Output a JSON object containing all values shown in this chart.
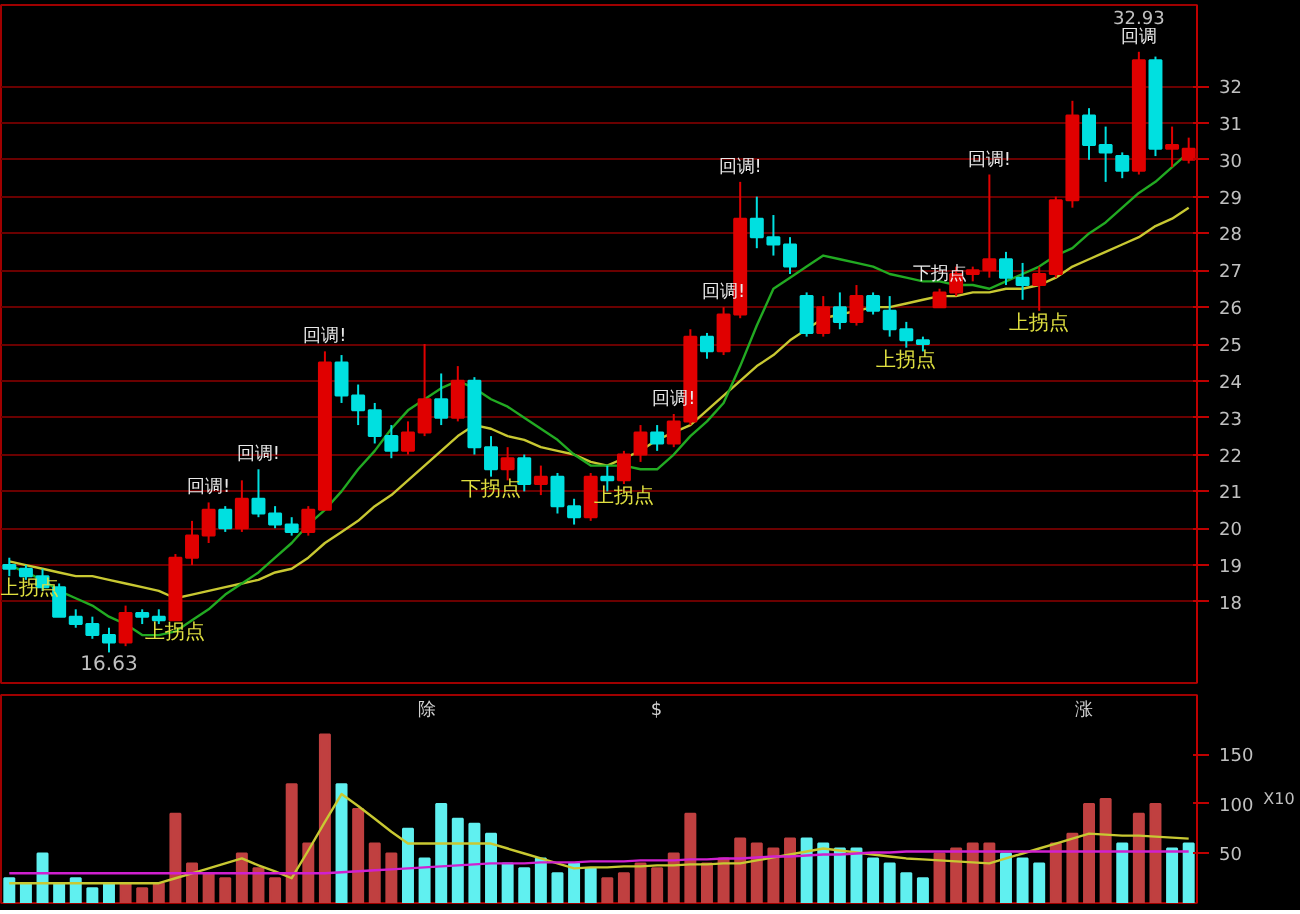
{
  "chart_data": [
    {
      "type": "candlestick",
      "categories": [
        null,
        null,
        null,
        null,
        null,
        null,
        null,
        null,
        null,
        null,
        null,
        null,
        null,
        null,
        null,
        null,
        null,
        null,
        null,
        null,
        null,
        null,
        null,
        null,
        null,
        null,
        null,
        null,
        null,
        null,
        null,
        null,
        null,
        null,
        null,
        null,
        null,
        null,
        null,
        null,
        null,
        null,
        null,
        null,
        null,
        null,
        null,
        null,
        null,
        null,
        null,
        null,
        null,
        null,
        null,
        null,
        null,
        null,
        null,
        null,
        null,
        null,
        null,
        null,
        null,
        null,
        null,
        null,
        null,
        null,
        null,
        null
      ],
      "ohlc": [
        [
          19.0,
          19.2,
          18.7,
          18.9
        ],
        [
          18.9,
          19.0,
          18.6,
          18.7
        ],
        [
          18.7,
          18.9,
          18.3,
          18.4
        ],
        [
          18.4,
          18.5,
          17.6,
          17.6
        ],
        [
          17.6,
          17.8,
          17.3,
          17.4
        ],
        [
          17.4,
          17.6,
          17.0,
          17.1
        ],
        [
          17.1,
          17.3,
          16.63,
          16.9
        ],
        [
          16.9,
          17.9,
          16.8,
          17.7
        ],
        [
          17.7,
          17.8,
          17.4,
          17.6
        ],
        [
          17.6,
          17.8,
          17.4,
          17.5
        ],
        [
          17.5,
          19.3,
          17.5,
          19.2
        ],
        [
          19.2,
          20.2,
          19.0,
          19.8
        ],
        [
          19.8,
          20.7,
          19.6,
          20.5
        ],
        [
          20.5,
          20.6,
          19.9,
          20.0
        ],
        [
          20.0,
          21.3,
          19.9,
          20.8
        ],
        [
          20.8,
          21.6,
          20.3,
          20.4
        ],
        [
          20.4,
          20.6,
          20.0,
          20.1
        ],
        [
          20.1,
          20.3,
          19.8,
          19.9
        ],
        [
          19.9,
          20.6,
          19.8,
          20.5
        ],
        [
          20.5,
          24.8,
          20.5,
          24.5
        ],
        [
          24.5,
          24.7,
          23.4,
          23.6
        ],
        [
          23.6,
          23.9,
          22.8,
          23.2
        ],
        [
          23.2,
          23.4,
          22.3,
          22.5
        ],
        [
          22.5,
          22.8,
          21.9,
          22.1
        ],
        [
          22.1,
          22.9,
          22.0,
          22.6
        ],
        [
          22.6,
          25.0,
          22.5,
          23.5
        ],
        [
          23.5,
          24.2,
          22.8,
          23.0
        ],
        [
          23.0,
          24.4,
          22.9,
          24.0
        ],
        [
          24.0,
          24.1,
          22.0,
          22.2
        ],
        [
          22.2,
          22.5,
          21.4,
          21.6
        ],
        [
          21.6,
          22.2,
          21.3,
          21.9
        ],
        [
          21.9,
          22.0,
          21.0,
          21.2
        ],
        [
          21.2,
          21.7,
          20.9,
          21.4
        ],
        [
          21.4,
          21.5,
          20.4,
          20.6
        ],
        [
          20.6,
          20.8,
          20.1,
          20.3
        ],
        [
          20.3,
          21.5,
          20.2,
          21.4
        ],
        [
          21.4,
          21.7,
          21.0,
          21.3
        ],
        [
          21.3,
          22.1,
          21.2,
          22.0
        ],
        [
          22.0,
          22.8,
          21.8,
          22.6
        ],
        [
          22.6,
          22.8,
          22.1,
          22.3
        ],
        [
          22.3,
          23.1,
          22.2,
          22.9
        ],
        [
          22.9,
          25.4,
          22.8,
          25.2
        ],
        [
          25.2,
          25.3,
          24.6,
          24.8
        ],
        [
          24.8,
          26.0,
          24.7,
          25.8
        ],
        [
          25.8,
          29.4,
          25.7,
          28.4
        ],
        [
          28.4,
          29.0,
          27.6,
          27.9
        ],
        [
          27.9,
          28.5,
          27.4,
          27.7
        ],
        [
          27.7,
          27.9,
          26.9,
          27.1
        ],
        [
          26.3,
          26.4,
          25.2,
          25.3
        ],
        [
          25.3,
          26.3,
          25.2,
          26.0
        ],
        [
          26.0,
          26.4,
          25.4,
          25.6
        ],
        [
          25.6,
          26.6,
          25.5,
          26.3
        ],
        [
          26.3,
          26.4,
          25.8,
          25.9
        ],
        [
          25.9,
          26.3,
          25.2,
          25.4
        ],
        [
          25.4,
          25.6,
          24.9,
          25.1
        ],
        [
          25.1,
          25.2,
          24.8,
          25.0
        ],
        [
          26.0,
          26.5,
          26.0,
          26.4
        ],
        [
          26.4,
          27.1,
          26.3,
          26.9
        ],
        [
          26.9,
          27.1,
          26.7,
          27.0
        ],
        [
          27.0,
          29.6,
          26.8,
          27.3
        ],
        [
          27.3,
          27.5,
          26.6,
          26.8
        ],
        [
          26.8,
          27.2,
          26.2,
          26.6
        ],
        [
          26.6,
          27.1,
          25.9,
          26.9
        ],
        [
          26.9,
          29.0,
          26.8,
          28.9
        ],
        [
          28.9,
          31.6,
          28.7,
          31.2
        ],
        [
          31.2,
          31.4,
          30.0,
          30.4
        ],
        [
          30.4,
          30.9,
          29.4,
          30.2
        ],
        [
          30.1,
          30.2,
          29.5,
          29.7
        ],
        [
          29.7,
          32.93,
          29.6,
          32.7
        ],
        [
          32.7,
          32.8,
          30.1,
          30.3
        ],
        [
          30.3,
          30.9,
          29.8,
          30.4
        ],
        [
          30.0,
          30.6,
          29.9,
          30.3
        ]
      ],
      "series": [
        {
          "type": "line",
          "color": "#c8c832",
          "values": [
            19.1,
            19.0,
            18.9,
            18.8,
            18.7,
            18.7,
            18.6,
            18.5,
            18.4,
            18.3,
            18.1,
            18.2,
            18.3,
            18.4,
            18.5,
            18.6,
            18.8,
            18.9,
            19.2,
            19.6,
            19.9,
            20.2,
            20.6,
            20.9,
            21.3,
            21.7,
            22.1,
            22.5,
            22.8,
            22.7,
            22.5,
            22.4,
            22.2,
            22.1,
            22.0,
            21.8,
            21.7,
            21.9,
            22.1,
            22.4,
            22.6,
            22.8,
            23.2,
            23.6,
            24.0,
            24.4,
            24.7,
            25.1,
            25.4,
            25.7,
            25.8,
            25.9,
            26.0,
            26.0,
            26.1,
            26.2,
            26.3,
            26.3,
            26.4,
            26.4,
            26.5,
            26.5,
            26.6,
            26.8,
            27.1,
            27.3,
            27.5,
            27.7,
            27.9,
            28.2,
            28.4,
            28.7
          ]
        },
        {
          "type": "line",
          "color": "#22aa22",
          "values": [
            19.0,
            18.8,
            18.6,
            18.3,
            18.1,
            17.9,
            17.6,
            17.4,
            17.1,
            17.1,
            17.2,
            17.5,
            17.8,
            18.2,
            18.5,
            18.8,
            19.2,
            19.6,
            20.1,
            20.5,
            21.0,
            21.6,
            22.1,
            22.7,
            23.2,
            23.5,
            23.8,
            24.0,
            23.8,
            23.5,
            23.3,
            23.0,
            22.7,
            22.4,
            22.0,
            21.7,
            21.7,
            21.7,
            21.6,
            21.6,
            22.0,
            22.5,
            22.9,
            23.4,
            24.4,
            25.5,
            26.5,
            26.8,
            27.1,
            27.4,
            27.3,
            27.2,
            27.1,
            26.9,
            26.8,
            26.7,
            26.7,
            26.6,
            26.6,
            26.5,
            26.7,
            26.9,
            27.1,
            27.4,
            27.6,
            28.0,
            28.3,
            28.7,
            29.1,
            29.4,
            29.8,
            30.2
          ]
        }
      ],
      "annotations": [
        {
          "text": "回调!",
          "y": 20.7
        },
        {
          "text": "回调!",
          "y": 21.6
        },
        {
          "text": "回调!",
          "y": 24.8
        },
        {
          "text": "回调!",
          "y": 23.1
        },
        {
          "text": "回调!",
          "y": 26.0
        },
        {
          "text": "回调!",
          "y": 29.4
        },
        {
          "text": "回调!",
          "y": 29.6
        },
        {
          "text": "回调",
          "y": 32.93
        },
        {
          "text": "上拐点",
          "y": 18.7
        },
        {
          "text": "上拐点",
          "y": 17.5
        },
        {
          "text": "上拐点",
          "y": 21.2
        },
        {
          "text": "上拐点",
          "y": 24.9
        },
        {
          "text": "上拐点",
          "y": 25.9
        },
        {
          "text": "下拐点",
          "y": 21.4
        },
        {
          "text": "下拐点",
          "y": 26.5
        },
        {
          "text": "16.63",
          "y": 16.63
        },
        {
          "text": "32.93",
          "y": 32.93
        }
      ],
      "ylim": [
        15.8,
        34.2
      ],
      "yticks": [
        18,
        19,
        20,
        21,
        22,
        23,
        24,
        25,
        26,
        27,
        28,
        29,
        30,
        31,
        32
      ],
      "grid": "y",
      "tick_labels": "y"
    },
    {
      "type": "bar",
      "categories": [
        null,
        null,
        null,
        null,
        null,
        null,
        null,
        null,
        null,
        null,
        null,
        null,
        null,
        null,
        null,
        null,
        null,
        null,
        null,
        null,
        null,
        null,
        null,
        null,
        null,
        null,
        null,
        null,
        null,
        null,
        null,
        null,
        null,
        null,
        null,
        null,
        null,
        null,
        null,
        null,
        null,
        null,
        null,
        null,
        null,
        null,
        null,
        null,
        null,
        null,
        null,
        null,
        null,
        null,
        null,
        null,
        null,
        null,
        null,
        null,
        null,
        null,
        null,
        null,
        null,
        null,
        null,
        null,
        null,
        null,
        null,
        null
      ],
      "series": [
        {
          "type": "bar",
          "values": [
            25,
            20,
            50,
            20,
            25,
            15,
            20,
            20,
            15,
            20,
            90,
            40,
            30,
            25,
            50,
            35,
            25,
            120,
            60,
            170,
            120,
            95,
            60,
            50,
            75,
            45,
            100,
            85,
            80,
            70,
            40,
            35,
            45,
            30,
            40,
            35,
            25,
            30,
            40,
            35,
            50,
            90,
            40,
            45,
            65,
            60,
            55,
            65,
            65,
            60,
            55,
            55,
            45,
            40,
            30,
            25,
            50,
            55,
            60,
            60,
            50,
            45,
            40,
            60,
            70,
            100,
            105,
            60,
            90,
            100,
            55,
            60
          ],
          "colors": [
            "#60f0f0",
            "#60f0f0",
            "#60f0f0",
            "#60f0f0",
            "#60f0f0",
            "#60f0f0",
            "#60f0f0",
            "#c04040",
            "#c04040",
            "#c04040",
            "#c04040",
            "#c04040",
            "#c04040",
            "#c04040",
            "#c04040",
            "#c04040",
            "#c04040",
            "#c04040",
            "#c04040",
            "#c04040",
            "#60f0f0",
            "#c04040",
            "#c04040",
            "#c04040",
            "#60f0f0",
            "#60f0f0",
            "#60f0f0",
            "#60f0f0",
            "#60f0f0",
            "#60f0f0",
            "#60f0f0",
            "#60f0f0",
            "#60f0f0",
            "#60f0f0",
            "#60f0f0",
            "#60f0f0",
            "#c04040",
            "#c04040",
            "#c04040",
            "#c04040",
            "#c04040",
            "#c04040",
            "#c04040",
            "#c04040",
            "#c04040",
            "#c04040",
            "#c04040",
            "#c04040",
            "#60f0f0",
            "#60f0f0",
            "#60f0f0",
            "#60f0f0",
            "#60f0f0",
            "#60f0f0",
            "#60f0f0",
            "#60f0f0",
            "#c04040",
            "#c04040",
            "#c04040",
            "#c04040",
            "#60f0f0",
            "#60f0f0",
            "#60f0f0",
            "#c04040",
            "#c04040",
            "#c04040",
            "#c04040",
            "#60f0f0",
            "#c04040",
            "#c04040",
            "#60f0f0",
            "#60f0f0"
          ]
        },
        {
          "type": "line",
          "color": "#c8c832",
          "values": [
            20,
            20,
            20,
            20,
            20,
            20,
            20,
            20,
            20,
            20,
            25,
            30,
            35,
            40,
            45,
            38,
            32,
            25,
            53,
            82,
            110,
            98,
            85,
            72,
            60,
            60,
            60,
            60,
            60,
            60,
            55,
            50,
            45,
            40,
            35,
            36,
            36,
            37,
            37,
            38,
            38,
            39,
            39,
            40,
            40,
            43,
            46,
            49,
            52,
            55,
            53,
            51,
            49,
            47,
            45,
            44,
            43,
            42,
            41,
            40,
            45,
            50,
            55,
            60,
            65,
            70,
            69,
            68,
            68,
            67,
            66,
            65
          ]
        },
        {
          "type": "line",
          "color": "#d020d0",
          "values": [
            30,
            30,
            30,
            30,
            30,
            30,
            30,
            30,
            30,
            30,
            30,
            30,
            30,
            30,
            30,
            30,
            30,
            30,
            30,
            30,
            31,
            32,
            33,
            34,
            35,
            36,
            37,
            38,
            39,
            40,
            40,
            40,
            41,
            41,
            41,
            42,
            42,
            42,
            43,
            43,
            43,
            44,
            44,
            45,
            45,
            46,
            47,
            47,
            48,
            49,
            49,
            50,
            51,
            51,
            52,
            52,
            52,
            52,
            52,
            52,
            52,
            52,
            52,
            52,
            52,
            52,
            52,
            52,
            52,
            52,
            52,
            52
          ]
        }
      ],
      "annotations": [
        "除",
        "$",
        "涨"
      ],
      "ylabel": "X10",
      "ylim": [
        0,
        210
      ],
      "yticks": [
        50,
        100,
        150
      ],
      "tick_labels": "y"
    }
  ]
}
